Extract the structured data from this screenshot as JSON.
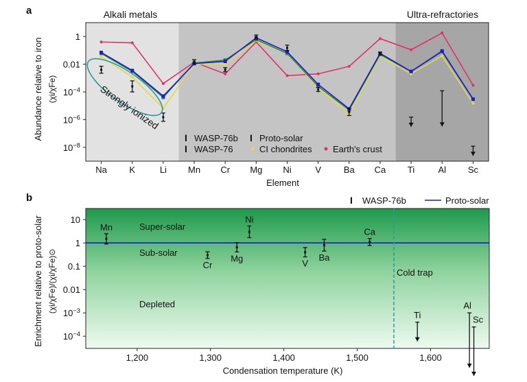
{
  "chart_data": [
    {
      "panel": "a",
      "type": "line",
      "log_y": true,
      "ylabel": "Abundance relative to iron",
      "ylabel_sub": "(χi/χFe)",
      "xlabel": "Element",
      "ylim": [
        1e-09,
        10
      ],
      "yticks": [
        {
          "value": 1,
          "label": "1"
        },
        {
          "value": 0.01,
          "label": "0.01"
        },
        {
          "value": 0.0001,
          "label": "10-4"
        },
        {
          "value": 1e-06,
          "label": "10-6"
        },
        {
          "value": 1e-08,
          "label": "10-8"
        }
      ],
      "categories": [
        "Na",
        "K",
        "Li",
        "Mn",
        "Cr",
        "Mg",
        "Ni",
        "V",
        "Ba",
        "Ca",
        "Ti",
        "Al",
        "Sc"
      ],
      "regions": [
        {
          "label": "Alkali metals",
          "from": "Na",
          "to": "Li",
          "color": "#e2e2e2"
        },
        {
          "label": "",
          "from": "Mn",
          "to": "Ca",
          "color": "#c4c4c4"
        },
        {
          "label": "Ultra-refractories",
          "from": "Ti",
          "to": "Sc",
          "color": "#a6a6a6"
        }
      ],
      "annotation": "Strongly ionized",
      "series": [
        {
          "name": "WASP-76b",
          "color": "#111111",
          "kind": "errorbar",
          "values": [
            0.004,
            0.00025,
            1.5e-06,
            0.015,
            0.004,
            0.9,
            0.15,
            0.00015,
            3.5e-06,
            0.06,
            null,
            null,
            null
          ],
          "errors_dex": [
            0.25,
            0.4,
            0.3,
            0.15,
            0.15,
            0.15,
            0.2,
            0.15,
            0.25,
            0.1,
            null,
            null,
            null
          ],
          "upper_limits": [
            null,
            null,
            null,
            null,
            null,
            null,
            null,
            null,
            null,
            null,
            1.5e-06,
            0.00012,
            1.2e-08
          ]
        },
        {
          "name": "WASP-76",
          "color": "#2a8a2a",
          "kind": "line",
          "values": [
            0.06,
            0.003,
            4e-05,
            0.012,
            0.02,
            0.6,
            0.06,
            0.00025,
            5e-06,
            0.05,
            0.003,
            0.08,
            3e-05
          ]
        },
        {
          "name": "Proto-solar",
          "color": "#1a1add",
          "kind": "line",
          "values": [
            0.07,
            0.0035,
            5e-05,
            0.011,
            0.016,
            0.8,
            0.08,
            0.00035,
            6e-06,
            0.06,
            0.003,
            0.09,
            3e-05
          ]
        },
        {
          "name": "CI chondrites",
          "color": "#e8d840",
          "kind": "line",
          "values": [
            0.035,
            0.0012,
            6.5e-06,
            0.01,
            0.01,
            0.5,
            0.06,
            0.0002,
            2.5e-06,
            0.04,
            0.002,
            0.04,
            1.5e-05
          ]
        },
        {
          "name": "Earth's crust",
          "color": "#e0306a",
          "kind": "line",
          "values": [
            0.4,
            0.35,
            0.0004,
            0.014,
            0.002,
            0.4,
            0.0015,
            0.002,
            0.007,
            0.7,
            0.11,
            1.8,
            0.0003
          ]
        }
      ]
    },
    {
      "panel": "b",
      "type": "scatter",
      "log_y": true,
      "xlabel": "Condensation temperature (K)",
      "ylabel": "Enrichment relative to proto-solar",
      "ylabel_sub": "(χi/χFe)/(χi/χFe)⊙",
      "xlim": [
        1130,
        1680
      ],
      "ylim": [
        3e-05,
        30
      ],
      "xticks": [
        {
          "value": 1200,
          "label": "1,200"
        },
        {
          "value": 1300,
          "label": "1,300"
        },
        {
          "value": 1400,
          "label": "1,400"
        },
        {
          "value": 1500,
          "label": "1,500"
        },
        {
          "value": 1600,
          "label": "1,600"
        }
      ],
      "yticks": [
        {
          "value": 10,
          "label": "10"
        },
        {
          "value": 1,
          "label": "1"
        },
        {
          "value": 0.1,
          "label": "0.1"
        },
        {
          "value": 0.01,
          "label": "0.01"
        },
        {
          "value": 0.001,
          "label": "10-3"
        },
        {
          "value": 0.0001,
          "label": "10-4"
        }
      ],
      "cold_trap_temperature": 1550,
      "region_labels": {
        "super": "Super-solar",
        "sub": "Sub-solar",
        "depleted": "Depleted",
        "cold_trap": "Cold trap"
      },
      "legend": [
        "WASP-76b",
        "Proto-solar"
      ],
      "points": [
        {
          "element": "Mn",
          "x": 1158,
          "y": 1.5,
          "err_dex": 0.22,
          "label_pos": "above"
        },
        {
          "element": "Cr",
          "x": 1296,
          "y": 0.3,
          "err_dex": 0.14,
          "label_pos": "below"
        },
        {
          "element": "Mg",
          "x": 1336,
          "y": 0.65,
          "err_dex": 0.2,
          "label_pos": "below"
        },
        {
          "element": "Ni",
          "x": 1353,
          "y": 3.0,
          "err_dex": 0.25,
          "label_pos": "above"
        },
        {
          "element": "V",
          "x": 1429,
          "y": 0.4,
          "err_dex": 0.2,
          "label_pos": "below"
        },
        {
          "element": "Ba",
          "x": 1455,
          "y": 0.8,
          "err_dex": 0.25,
          "label_pos": "below"
        },
        {
          "element": "Ca",
          "x": 1517,
          "y": 1.1,
          "err_dex": 0.15,
          "label_pos": "above"
        }
      ],
      "upper_limits": [
        {
          "element": "Ti",
          "x": 1582,
          "y": 0.0004
        },
        {
          "element": "Al",
          "x": 1653,
          "y": 0.001
        },
        {
          "element": "Sc",
          "x": 1659,
          "y": 0.00025
        }
      ]
    }
  ],
  "panel_labels": {
    "a": "a",
    "b": "b"
  }
}
